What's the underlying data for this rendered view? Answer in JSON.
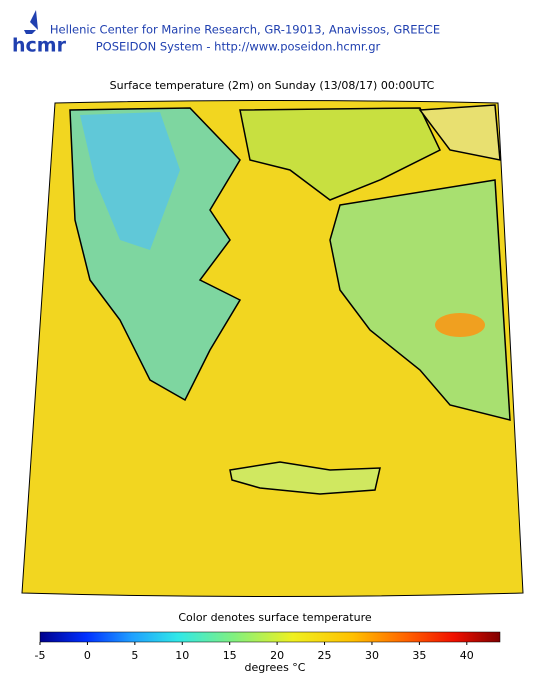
{
  "header": {
    "logo": "hcmr",
    "line1": "Hellenic Center for Marine Research, GR-19013, Anavissos, GREECE",
    "line2": "POSEIDON System - http://www.poseidon.hcmr.gr"
  },
  "map": {
    "title": "Surface temperature (2m) on Sunday (13/08/17) 00:00UTC"
  },
  "colorbar": {
    "caption": "Color denotes surface temperature",
    "range": [
      -5,
      43.5
    ],
    "ticks": [
      -5,
      0,
      5,
      10,
      15,
      20,
      25,
      30,
      35,
      40
    ],
    "unit": "degrees °C"
  }
}
